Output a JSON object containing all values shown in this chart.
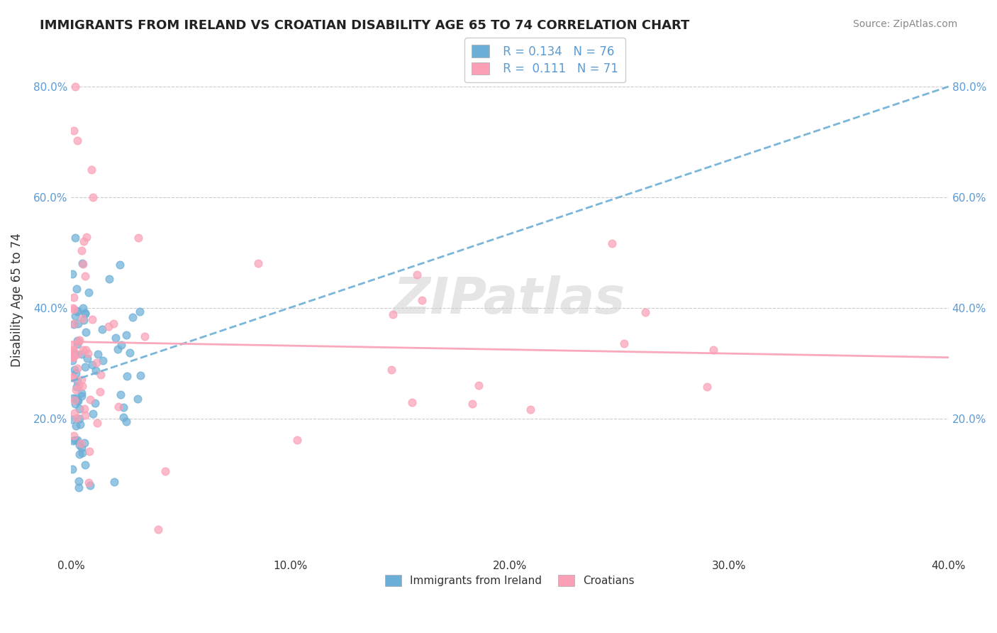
{
  "title": "IMMIGRANTS FROM IRELAND VS CROATIAN DISABILITY AGE 65 TO 74 CORRELATION CHART",
  "source": "Source: ZipAtlas.com",
  "xlabel": "",
  "ylabel": "Disability Age 65 to 74",
  "xlim": [
    0.0,
    0.4
  ],
  "ylim": [
    -0.05,
    0.88
  ],
  "xtick_labels": [
    "0.0%",
    "10.0%",
    "20.0%",
    "30.0%",
    "40.0%"
  ],
  "xtick_vals": [
    0.0,
    0.1,
    0.2,
    0.3,
    0.4
  ],
  "ytick_labels": [
    "20.0%",
    "40.0%",
    "60.0%",
    "80.0%"
  ],
  "ytick_vals": [
    0.2,
    0.4,
    0.6,
    0.8
  ],
  "legend_r1": "R = 0.134",
  "legend_n1": "N = 76",
  "legend_r2": "R =  0.111",
  "legend_n2": "N = 71",
  "R_ire": 0.134,
  "R_cro": 0.111,
  "N_ire": 76,
  "N_cro": 71,
  "color_ireland": "#6baed6",
  "color_croatia": "#fa9fb5",
  "watermark": "ZIPatlas",
  "series1_label": "Immigrants from Ireland",
  "series2_label": "Croatians",
  "background_color": "#ffffff",
  "grid_color": "#cccccc"
}
